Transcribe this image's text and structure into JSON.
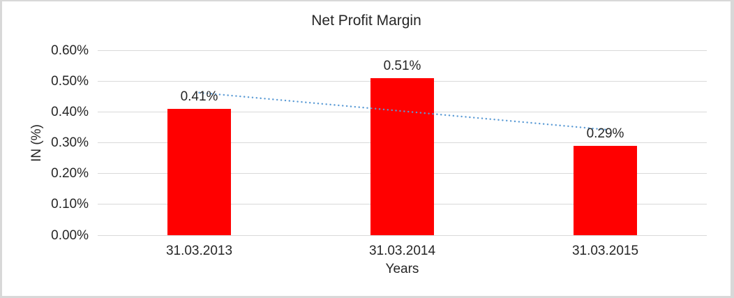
{
  "chart_data": {
    "type": "bar",
    "title": "Net Profit Margin",
    "categories": [
      "31.03.2013",
      "31.03.2014",
      "31.03.2015"
    ],
    "values": [
      0.41,
      0.51,
      0.29
    ],
    "data_labels": [
      "0.41%",
      "0.51%",
      "0.29%"
    ],
    "xlabel": "Years",
    "ylabel": "IN (%)",
    "ylim": [
      0,
      0.6
    ],
    "ytick_step": 0.1,
    "ytick_labels": [
      "0.00%",
      "0.10%",
      "0.20%",
      "0.30%",
      "0.40%",
      "0.50%",
      "0.60%"
    ],
    "grid": true,
    "legend": "none",
    "trendline": {
      "type": "linear",
      "style": "dotted"
    },
    "colors": {
      "bar": "#ff0000",
      "trendline": "#5b9bd5",
      "gridline": "#d9d9d9",
      "text": "#262626",
      "frame_border": "#d8d8d8",
      "background": "#ffffff"
    }
  }
}
